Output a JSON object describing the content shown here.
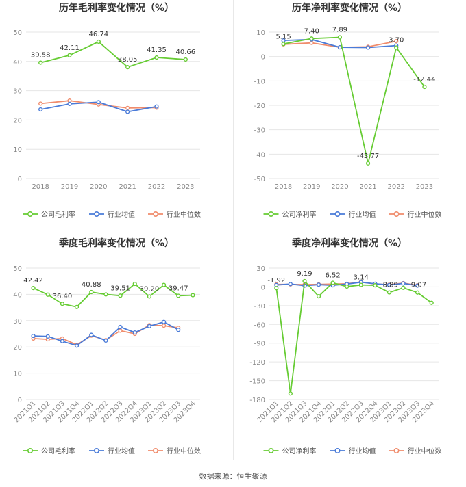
{
  "source_note": "数据来源：恒生聚源",
  "colors": {
    "company": "#66cc33",
    "industry_avg": "#4a7bd8",
    "industry_median": "#f08c6c",
    "grid": "#e6e6e6",
    "axis_text": "#888888",
    "label_text": "#333333",
    "title_text": "#333333"
  },
  "chart_data": [
    {
      "id": "annual-gross",
      "type": "line",
      "title": "历年毛利率变化情况（%）",
      "categories": [
        "2018",
        "2019",
        "2020",
        "2021",
        "2022",
        "2023"
      ],
      "ylim": [
        0,
        50
      ],
      "yticks": [
        0,
        10,
        20,
        30,
        40,
        50
      ],
      "legend_position": "bottom-center",
      "series": [
        {
          "key": "company",
          "name": "公司毛利率",
          "values": [
            39.58,
            42.11,
            46.74,
            38.05,
            41.35,
            40.66
          ],
          "labels": [
            "39.58",
            "42.11",
            "46.74",
            "38.05",
            "41.35",
            "40.66"
          ]
        },
        {
          "key": "industry_avg",
          "name": "行业均值",
          "values": [
            23.6,
            25.5,
            26.1,
            22.8,
            24.6,
            null
          ]
        },
        {
          "key": "industry_median",
          "name": "行业中位数",
          "values": [
            25.6,
            26.6,
            25.3,
            24.1,
            24.2,
            null
          ]
        }
      ]
    },
    {
      "id": "annual-net",
      "type": "line",
      "title": "历年净利率变化情况（%）",
      "categories": [
        "2018",
        "2019",
        "2020",
        "2021",
        "2022",
        "2023"
      ],
      "ylim": [
        -50,
        10
      ],
      "yticks": [
        -50,
        -40,
        -30,
        -20,
        -10,
        0,
        10
      ],
      "legend_position": "bottom-center",
      "series": [
        {
          "key": "company",
          "name": "公司净利率",
          "values": [
            5.15,
            7.4,
            7.89,
            -43.77,
            3.7,
            -12.44
          ],
          "labels": [
            "5.15",
            "7.40",
            "7.89",
            "-43.77",
            "3.70",
            "-12.44"
          ]
        },
        {
          "key": "industry_avg",
          "name": "行业均值",
          "values": [
            6.6,
            7.0,
            3.8,
            3.7,
            4.5,
            null
          ]
        },
        {
          "key": "industry_median",
          "name": "行业中位数",
          "values": [
            5.0,
            5.6,
            3.8,
            4.0,
            6.3,
            null
          ]
        }
      ]
    },
    {
      "id": "quarterly-gross",
      "type": "line",
      "title": "季度毛利率变化情况（%）",
      "categories": [
        "2021Q1",
        "2021Q2",
        "2021Q3",
        "2021Q4",
        "2022Q1",
        "2022Q2",
        "2022Q3",
        "2022Q4",
        "2023Q1",
        "2023Q2",
        "2023Q3",
        "2023Q4"
      ],
      "ylim": [
        0,
        50
      ],
      "yticks": [
        0,
        10,
        20,
        30,
        40,
        50
      ],
      "legend_position": "bottom-center",
      "series": [
        {
          "key": "company",
          "name": "公司毛利率",
          "values": [
            42.42,
            39.9,
            36.4,
            35.2,
            40.88,
            40.0,
            39.51,
            44.0,
            39.2,
            43.6,
            39.47,
            39.7
          ],
          "labels": [
            "42.42",
            null,
            "36.40",
            null,
            "40.88",
            null,
            "39.51",
            null,
            "39.20",
            null,
            "39.47",
            null
          ]
        },
        {
          "key": "industry_avg",
          "name": "行业均值",
          "values": [
            24.2,
            24.0,
            22.2,
            20.5,
            24.6,
            22.4,
            27.6,
            25.5,
            27.9,
            29.5,
            26.5,
            null
          ]
        },
        {
          "key": "industry_median",
          "name": "行业中位数",
          "values": [
            23.2,
            22.9,
            23.2,
            20.8,
            24.3,
            22.6,
            26.2,
            25.0,
            28.3,
            28.1,
            27.3,
            null
          ]
        }
      ]
    },
    {
      "id": "quarterly-net",
      "type": "line",
      "title": "季度净利率变化情况（%）",
      "categories": [
        "2021Q1",
        "2021Q2",
        "2021Q3",
        "2021Q4",
        "2022Q1",
        "2022Q2",
        "2022Q3",
        "2022Q4",
        "2023Q1",
        "2023Q2",
        "2023Q3",
        "2023Q4"
      ],
      "ylim": [
        -180,
        30
      ],
      "yticks": [
        -180,
        -150,
        -120,
        -90,
        -60,
        -30,
        0,
        30
      ],
      "legend_position": "bottom-center",
      "series": [
        {
          "key": "company",
          "name": "公司净利率",
          "values": [
            -1.92,
            -170.5,
            9.19,
            -15.0,
            6.52,
            0.5,
            3.14,
            2.5,
            -8.89,
            -1.5,
            -9.07,
            -25.5
          ],
          "labels": [
            "-1.92",
            null,
            "9.19",
            null,
            "6.52",
            null,
            "3.14",
            null,
            "-8.89",
            null,
            "-9.07",
            null
          ]
        },
        {
          "key": "industry_avg",
          "name": "行业均值",
          "values": [
            3.0,
            4.5,
            2.0,
            3.5,
            2.5,
            4.5,
            7.5,
            5.0,
            3.0,
            5.5,
            2.0,
            null
          ]
        },
        {
          "key": "industry_median",
          "name": "行业中位数",
          "values": [
            4.0,
            4.0,
            3.5,
            4.0,
            4.5,
            5.0,
            8.0,
            4.5,
            3.5,
            6.0,
            2.5,
            null
          ]
        }
      ]
    }
  ]
}
